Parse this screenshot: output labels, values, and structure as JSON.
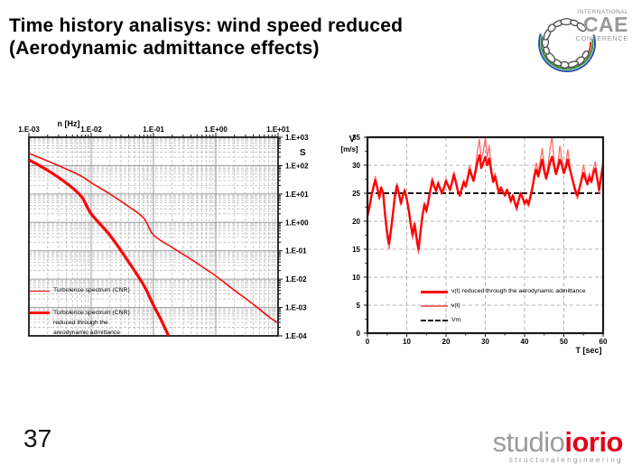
{
  "slide": {
    "title_line1": "Time history analisys: wind speed reduced",
    "title_line2": "(Aerodynamic admittance effects)",
    "page_number": "37"
  },
  "cae_logo": {
    "international": "INTERNATIONAL",
    "cae": "CAE",
    "conference": "CONFERENCE",
    "arc_colors": [
      "#2456a4",
      "#3c8c40",
      "#d03020"
    ]
  },
  "studio_logo": {
    "part1": "studio",
    "part2": "iorio",
    "subtitle": "structuralengineering",
    "gray": "#9b9b9b",
    "red": "#e2001a"
  },
  "chart_data": [
    {
      "type": "line",
      "title": "",
      "xlabel": "n [Hz]",
      "ylabel": "S",
      "x_scale": "log",
      "y_scale": "log",
      "xlim": [
        0.001,
        10
      ],
      "ylim": [
        0.0001,
        1000
      ],
      "x_tick_labels": [
        "1.E-03",
        "1.E-02",
        "1.E-01",
        "1.E+00",
        "1.E+01"
      ],
      "y_tick_labels": [
        "1.E+03",
        "1.E+02",
        "1.E+01",
        "1.E+00",
        "1.E-01",
        "1.E-02",
        "1.E-03",
        "1.E-04"
      ],
      "grid": "log major+minor",
      "legend_position": "inside bottom-left",
      "legend": [
        {
          "label": "Turbolence spectrum (CNR)"
        },
        {
          "line1": "Turbolence spectrum (CNR)",
          "line2": "reduced through the",
          "line3": "areodynamic admittance"
        }
      ],
      "series": [
        {
          "name": "Turbolence spectrum (CNR)",
          "color": "#ff0000",
          "width": 1.5,
          "points": [
            [
              0.001,
              270
            ],
            [
              0.002,
              145
            ],
            [
              0.004,
              75
            ],
            [
              0.007,
              42
            ],
            [
              0.01,
              25
            ],
            [
              0.02,
              10
            ],
            [
              0.04,
              3.6
            ],
            [
              0.07,
              1.4
            ],
            [
              0.1,
              0.36
            ],
            [
              0.2,
              0.13
            ],
            [
              0.4,
              0.05
            ],
            [
              0.7,
              0.022
            ],
            [
              1,
              0.013
            ],
            [
              2,
              0.004
            ],
            [
              4,
              0.0013
            ],
            [
              7,
              0.00048
            ],
            [
              10,
              0.00028
            ]
          ]
        },
        {
          "name": "Turbolence spectrum (CNR) reduced through the areodynamic admittance",
          "color": "#ff0000",
          "width": 3.2,
          "points": [
            [
              0.001,
              160
            ],
            [
              0.002,
              68
            ],
            [
              0.004,
              24
            ],
            [
              0.007,
              8
            ],
            [
              0.01,
              2.0
            ],
            [
              0.02,
              0.35
            ],
            [
              0.04,
              0.04
            ],
            [
              0.07,
              0.006
            ],
            [
              0.1,
              0.0012
            ],
            [
              0.13,
              0.0004
            ],
            [
              0.16,
              0.00015
            ],
            [
              0.175,
              0.0001
            ]
          ]
        }
      ]
    },
    {
      "type": "line",
      "title": "",
      "xlabel": "T [sec]",
      "ylabel_line1": "V",
      "ylabel_line2": "[m/s]",
      "xlim": [
        0,
        60
      ],
      "ylim": [
        0,
        35
      ],
      "x_tick_labels": [
        "0",
        "10",
        "20",
        "30",
        "40",
        "50",
        "60"
      ],
      "y_tick_labels": [
        "35",
        "30",
        "25",
        "20",
        "15",
        "10",
        "5",
        "0"
      ],
      "grid": "dashed major",
      "legend_position": "inside bottom-center",
      "t0": 0,
      "dt": 0.5,
      "series": [
        {
          "label": "v(t) reduced through the aerodynamic admittance",
          "color": "#ff0000",
          "width": 2.4,
          "values": [
            21.0,
            22.5,
            24.5,
            26.0,
            27.3,
            26.0,
            24.2,
            26.0,
            25.0,
            21.0,
            18.0,
            16.0,
            18.5,
            21.5,
            24.5,
            26.3,
            25.0,
            23.2,
            24.5,
            25.5,
            24.0,
            22.0,
            19.5,
            17.5,
            19.5,
            17.0,
            15.0,
            18.0,
            21.0,
            23.0,
            21.8,
            23.5,
            25.5,
            27.3,
            26.2,
            25.4,
            26.8,
            25.8,
            25.0,
            26.0,
            27.2,
            26.4,
            25.6,
            26.8,
            28.3,
            27.0,
            25.4,
            24.6,
            25.8,
            27.0,
            26.2,
            27.6,
            29.2,
            28.2,
            27.2,
            28.8,
            30.5,
            31.8,
            29.5,
            30.5,
            31.5,
            30.0,
            31.2,
            29.0,
            27.0,
            28.0,
            26.5,
            25.0,
            26.0,
            25.2,
            24.6,
            25.6,
            24.8,
            23.6,
            24.6,
            23.4,
            22.4,
            23.8,
            25.0,
            24.2,
            23.2,
            23.8,
            23.0,
            24.4,
            26.0,
            28.0,
            29.2,
            28.0,
            29.5,
            31.0,
            29.0,
            27.6,
            29.0,
            30.5,
            31.5,
            30.0,
            28.4,
            29.6,
            31.0,
            30.0,
            28.6,
            29.6,
            31.0,
            29.4,
            28.0,
            26.6,
            25.4,
            24.6,
            26.0,
            27.4,
            28.6,
            27.6,
            26.6,
            28.0,
            27.0,
            28.6,
            29.4,
            27.6,
            25.6,
            28.0,
            30.0
          ]
        },
        {
          "label": "v(t)",
          "color": "#ff6a6a",
          "width": 1.3,
          "values": [
            20.5,
            22.0,
            24.8,
            26.5,
            28.0,
            26.2,
            23.8,
            26.2,
            25.2,
            20.2,
            17.0,
            15.0,
            18.0,
            21.0,
            25.0,
            26.8,
            25.2,
            22.8,
            24.8,
            25.8,
            24.2,
            21.5,
            19.0,
            16.8,
            19.8,
            16.2,
            14.2,
            17.5,
            21.2,
            23.4,
            21.4,
            23.8,
            26.0,
            27.8,
            26.4,
            25.2,
            27.2,
            25.8,
            24.8,
            26.2,
            27.6,
            26.4,
            25.4,
            27.0,
            28.8,
            27.2,
            25.2,
            24.4,
            26.0,
            27.4,
            26.2,
            28.0,
            30.0,
            28.6,
            27.4,
            29.6,
            32.5,
            34.6,
            31.0,
            32.5,
            35.0,
            31.5,
            33.5,
            29.8,
            27.4,
            28.6,
            26.8,
            24.8,
            26.2,
            25.2,
            24.4,
            25.8,
            24.6,
            23.2,
            24.8,
            23.0,
            21.8,
            23.6,
            25.2,
            24.0,
            22.8,
            23.6,
            22.6,
            24.4,
            26.4,
            28.8,
            30.4,
            28.6,
            30.8,
            33.0,
            30.0,
            27.8,
            30.0,
            33.0,
            35.2,
            31.0,
            28.6,
            30.6,
            33.4,
            31.0,
            28.8,
            30.4,
            32.8,
            30.2,
            28.0,
            26.2,
            24.8,
            24.0,
            26.0,
            28.0,
            30.0,
            28.4,
            26.6,
            28.6,
            27.0,
            29.4,
            30.6,
            27.8,
            25.0,
            28.4,
            31.0
          ]
        },
        {
          "label": "Vm",
          "color": "#111111",
          "style": "dashed",
          "value": 25
        }
      ]
    }
  ]
}
